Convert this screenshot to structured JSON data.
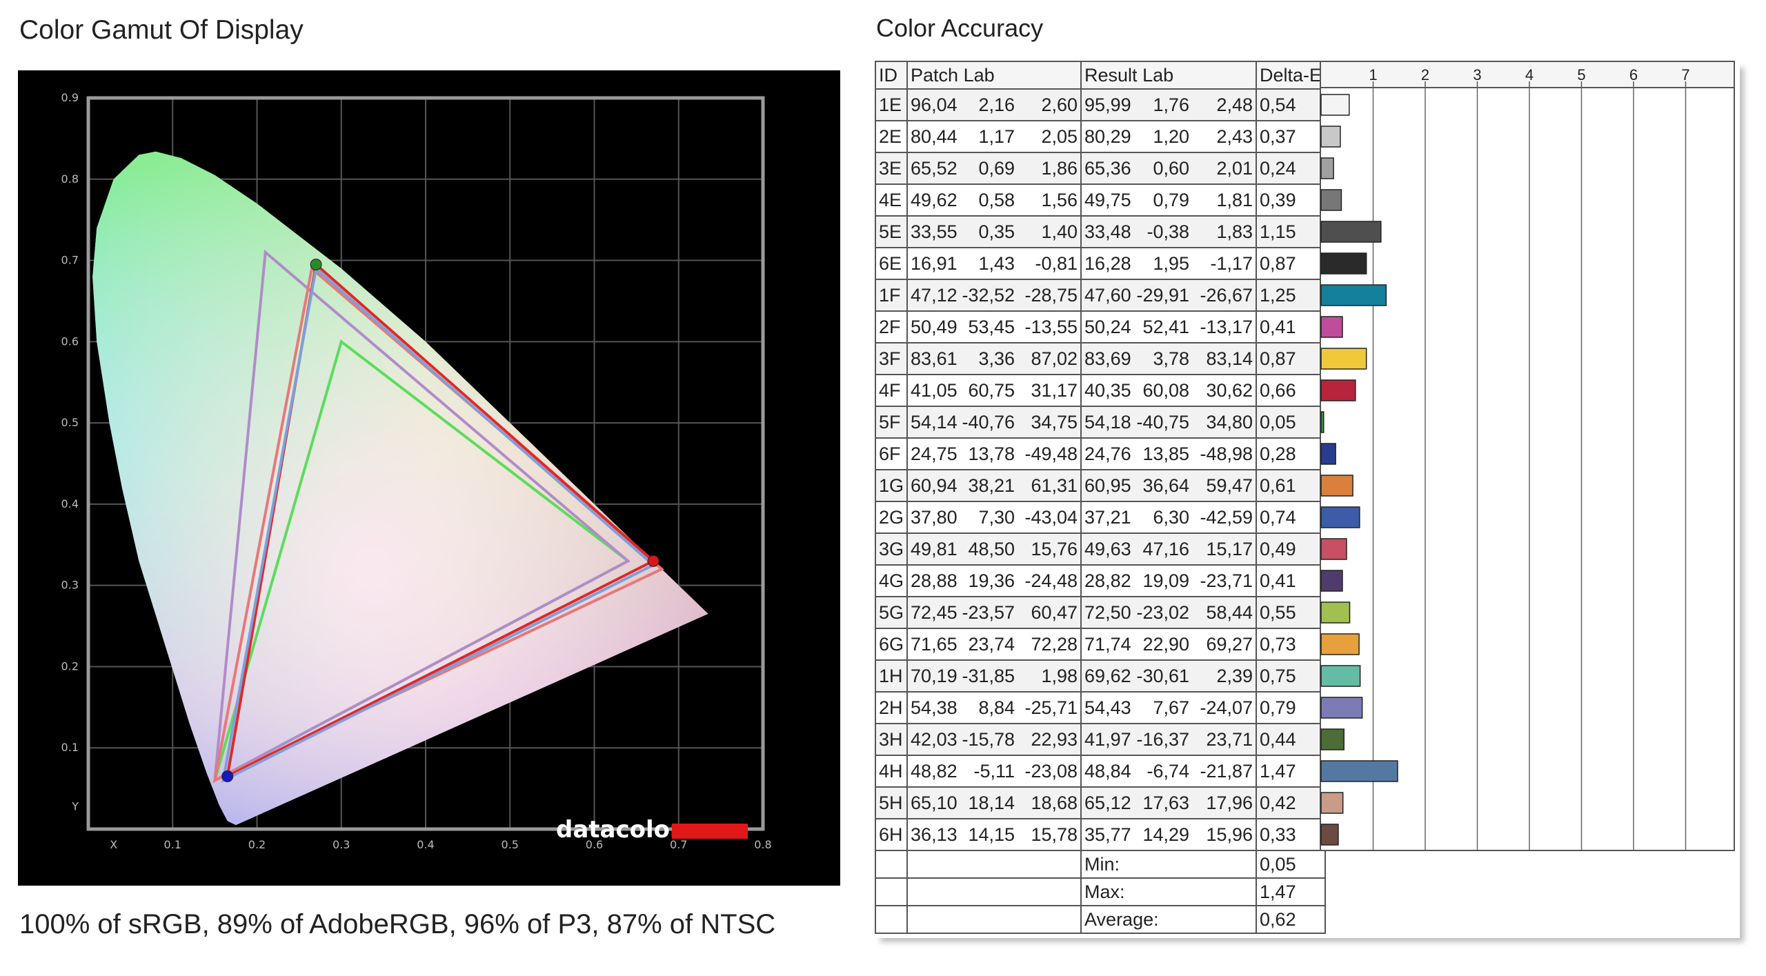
{
  "left_title": "Color Gamut Of Display",
  "gamut_caption": "100% of sRGB, 89% of AdobeRGB, 96% of P3, 87% of NTSC",
  "right_title": "Color Accuracy",
  "logo_text": "datacolor",
  "gamut_axes": {
    "y_ticks": [
      "0.9",
      "0.8",
      "0.7",
      "0.6",
      "0.5",
      "0.4",
      "0.3",
      "0.2",
      "0.1"
    ],
    "y_label": "Y",
    "x_ticks": [
      "0.1",
      "0.2",
      "0.3",
      "0.4",
      "0.5",
      "0.6",
      "0.7",
      "0.8"
    ],
    "x_label": "X"
  },
  "table": {
    "headers": [
      "ID",
      "Patch Lab",
      "Result Lab",
      "Delta-E"
    ],
    "footer": [
      {
        "label": "Min:",
        "value": "0,05"
      },
      {
        "label": "Max:",
        "value": "1,47"
      },
      {
        "label": "Average:",
        "value": "0,62"
      }
    ]
  },
  "chart_data": [
    {
      "type": "scatter",
      "title": "Color Gamut Of Display",
      "xlabel": "X",
      "ylabel": "Y",
      "xlim": [
        0,
        0.8
      ],
      "ylim": [
        0,
        0.9
      ],
      "grid": true,
      "series": [
        {
          "values": [
            [
              0.64,
              0.33
            ],
            [
              0.3,
              0.6
            ],
            [
              0.15,
              0.06
            ]
          ],
          "color": "#5cdc5c"
        },
        {
          "values": [
            [
              0.64,
              0.33
            ],
            [
              0.21,
              0.71
            ],
            [
              0.15,
              0.06
            ]
          ],
          "color": "#b08cc8"
        },
        {
          "values": [
            [
              0.68,
              0.32
            ],
            [
              0.265,
              0.69
            ],
            [
              0.15,
              0.06
            ]
          ],
          "color": "#e87878"
        },
        {
          "values": [
            [
              0.67,
              0.33
            ],
            [
              0.27,
              0.695
            ],
            [
              0.165,
              0.065
            ]
          ],
          "color": "#e02828"
        },
        {
          "values": [
            [
              0.67,
              0.325
            ],
            [
              0.27,
              0.69
            ],
            [
              0.16,
              0.06
            ]
          ],
          "color": "#7f9fd9"
        }
      ],
      "markers": [
        {
          "x": 0.67,
          "y": 0.33,
          "color": "#d81818"
        },
        {
          "x": 0.27,
          "y": 0.695,
          "color": "#2a8a2a"
        },
        {
          "x": 0.165,
          "y": 0.065,
          "color": "#1818c0"
        }
      ]
    },
    {
      "type": "bar",
      "title": "Color Accuracy",
      "xlim": [
        0,
        8
      ],
      "x_ticks": [
        "1",
        "2",
        "3",
        "4",
        "5",
        "6",
        "7"
      ],
      "rows": [
        {
          "id": "1E",
          "patch": [
            "96,04",
            "2,16",
            "2,60"
          ],
          "result": [
            "95,99",
            "1,76",
            "2,48"
          ],
          "delta": "0,54",
          "value": 0.54,
          "color": "#f4f4f4"
        },
        {
          "id": "2E",
          "patch": [
            "80,44",
            "1,17",
            "2,05"
          ],
          "result": [
            "80,29",
            "1,20",
            "2,43"
          ],
          "delta": "0,37",
          "value": 0.37,
          "color": "#c8c8c8"
        },
        {
          "id": "3E",
          "patch": [
            "65,52",
            "0,69",
            "1,86"
          ],
          "result": [
            "65,36",
            "0,60",
            "2,01"
          ],
          "delta": "0,24",
          "value": 0.24,
          "color": "#a0a0a0"
        },
        {
          "id": "4E",
          "patch": [
            "49,62",
            "0,58",
            "1,56"
          ],
          "result": [
            "49,75",
            "0,79",
            "1,81"
          ],
          "delta": "0,39",
          "value": 0.39,
          "color": "#777777"
        },
        {
          "id": "5E",
          "patch": [
            "33,55",
            "0,35",
            "1,40"
          ],
          "result": [
            "33,48",
            "-0,38",
            "1,83"
          ],
          "delta": "1,15",
          "value": 1.15,
          "color": "#4f4f4f"
        },
        {
          "id": "6E",
          "patch": [
            "16,91",
            "1,43",
            "-0,81"
          ],
          "result": [
            "16,28",
            "1,95",
            "-1,17"
          ],
          "delta": "0,87",
          "value": 0.87,
          "color": "#2a2a2a"
        },
        {
          "id": "1F",
          "patch": [
            "47,12",
            "-32,52",
            "-28,75"
          ],
          "result": [
            "47,60",
            "-29,91",
            "-26,67"
          ],
          "delta": "1,25",
          "value": 1.25,
          "color": "#14809a"
        },
        {
          "id": "2F",
          "patch": [
            "50,49",
            "53,45",
            "-13,55"
          ],
          "result": [
            "50,24",
            "52,41",
            "-13,17"
          ],
          "delta": "0,41",
          "value": 0.41,
          "color": "#c04c9c"
        },
        {
          "id": "3F",
          "patch": [
            "83,61",
            "3,36",
            "87,02"
          ],
          "result": [
            "83,69",
            "3,78",
            "83,14"
          ],
          "delta": "0,87",
          "value": 0.87,
          "color": "#f0c83c"
        },
        {
          "id": "4F",
          "patch": [
            "41,05",
            "60,75",
            "31,17"
          ],
          "result": [
            "40,35",
            "60,08",
            "30,62"
          ],
          "delta": "0,66",
          "value": 0.66,
          "color": "#b8243c"
        },
        {
          "id": "5F",
          "patch": [
            "54,14",
            "-40,76",
            "34,75"
          ],
          "result": [
            "54,18",
            "-40,75",
            "34,80"
          ],
          "delta": "0,05",
          "value": 0.05,
          "color": "#3c8c48"
        },
        {
          "id": "6F",
          "patch": [
            "24,75",
            "13,78",
            "-49,48"
          ],
          "result": [
            "24,76",
            "13,85",
            "-48,98"
          ],
          "delta": "0,28",
          "value": 0.28,
          "color": "#283c90"
        },
        {
          "id": "1G",
          "patch": [
            "60,94",
            "38,21",
            "61,31"
          ],
          "result": [
            "60,95",
            "36,64",
            "59,47"
          ],
          "delta": "0,61",
          "value": 0.61,
          "color": "#d8803c"
        },
        {
          "id": "2G",
          "patch": [
            "37,80",
            "7,30",
            "-43,04"
          ],
          "result": [
            "37,21",
            "6,30",
            "-42,59"
          ],
          "delta": "0,74",
          "value": 0.74,
          "color": "#3c5ca8"
        },
        {
          "id": "3G",
          "patch": [
            "49,81",
            "48,50",
            "15,76"
          ],
          "result": [
            "49,63",
            "47,16",
            "15,17"
          ],
          "delta": "0,49",
          "value": 0.49,
          "color": "#c85064"
        },
        {
          "id": "4G",
          "patch": [
            "28,88",
            "19,36",
            "-24,48"
          ],
          "result": [
            "28,82",
            "19,09",
            "-23,71"
          ],
          "delta": "0,41",
          "value": 0.41,
          "color": "#503c6c"
        },
        {
          "id": "5G",
          "patch": [
            "72,45",
            "-23,57",
            "60,47"
          ],
          "result": [
            "72,50",
            "-23,02",
            "58,44"
          ],
          "delta": "0,55",
          "value": 0.55,
          "color": "#a0c050"
        },
        {
          "id": "6G",
          "patch": [
            "71,65",
            "23,74",
            "72,28"
          ],
          "result": [
            "71,74",
            "22,90",
            "69,27"
          ],
          "delta": "0,73",
          "value": 0.73,
          "color": "#e8a03c"
        },
        {
          "id": "1H",
          "patch": [
            "70,19",
            "-31,85",
            "1,98"
          ],
          "result": [
            "69,62",
            "-30,61",
            "2,39"
          ],
          "delta": "0,75",
          "value": 0.75,
          "color": "#64bca4"
        },
        {
          "id": "2H",
          "patch": [
            "54,38",
            "8,84",
            "-25,71"
          ],
          "result": [
            "54,43",
            "7,67",
            "-24,07"
          ],
          "delta": "0,79",
          "value": 0.79,
          "color": "#7c7cb4"
        },
        {
          "id": "3H",
          "patch": [
            "42,03",
            "-15,78",
            "22,93"
          ],
          "result": [
            "41,97",
            "-16,37",
            "23,71"
          ],
          "delta": "0,44",
          "value": 0.44,
          "color": "#4c6c38"
        },
        {
          "id": "4H",
          "patch": [
            "48,82",
            "-5,11",
            "-23,08"
          ],
          "result": [
            "48,84",
            "-6,74",
            "-21,87"
          ],
          "delta": "1,47",
          "value": 1.47,
          "color": "#5478a0"
        },
        {
          "id": "5H",
          "patch": [
            "65,10",
            "18,14",
            "18,68"
          ],
          "result": [
            "65,12",
            "17,63",
            "17,96"
          ],
          "delta": "0,42",
          "value": 0.42,
          "color": "#c89c88"
        },
        {
          "id": "6H",
          "patch": [
            "36,13",
            "14,15",
            "15,78"
          ],
          "result": [
            "35,77",
            "14,29",
            "15,96"
          ],
          "delta": "0,33",
          "value": 0.33,
          "color": "#6c4c40"
        }
      ]
    }
  ]
}
